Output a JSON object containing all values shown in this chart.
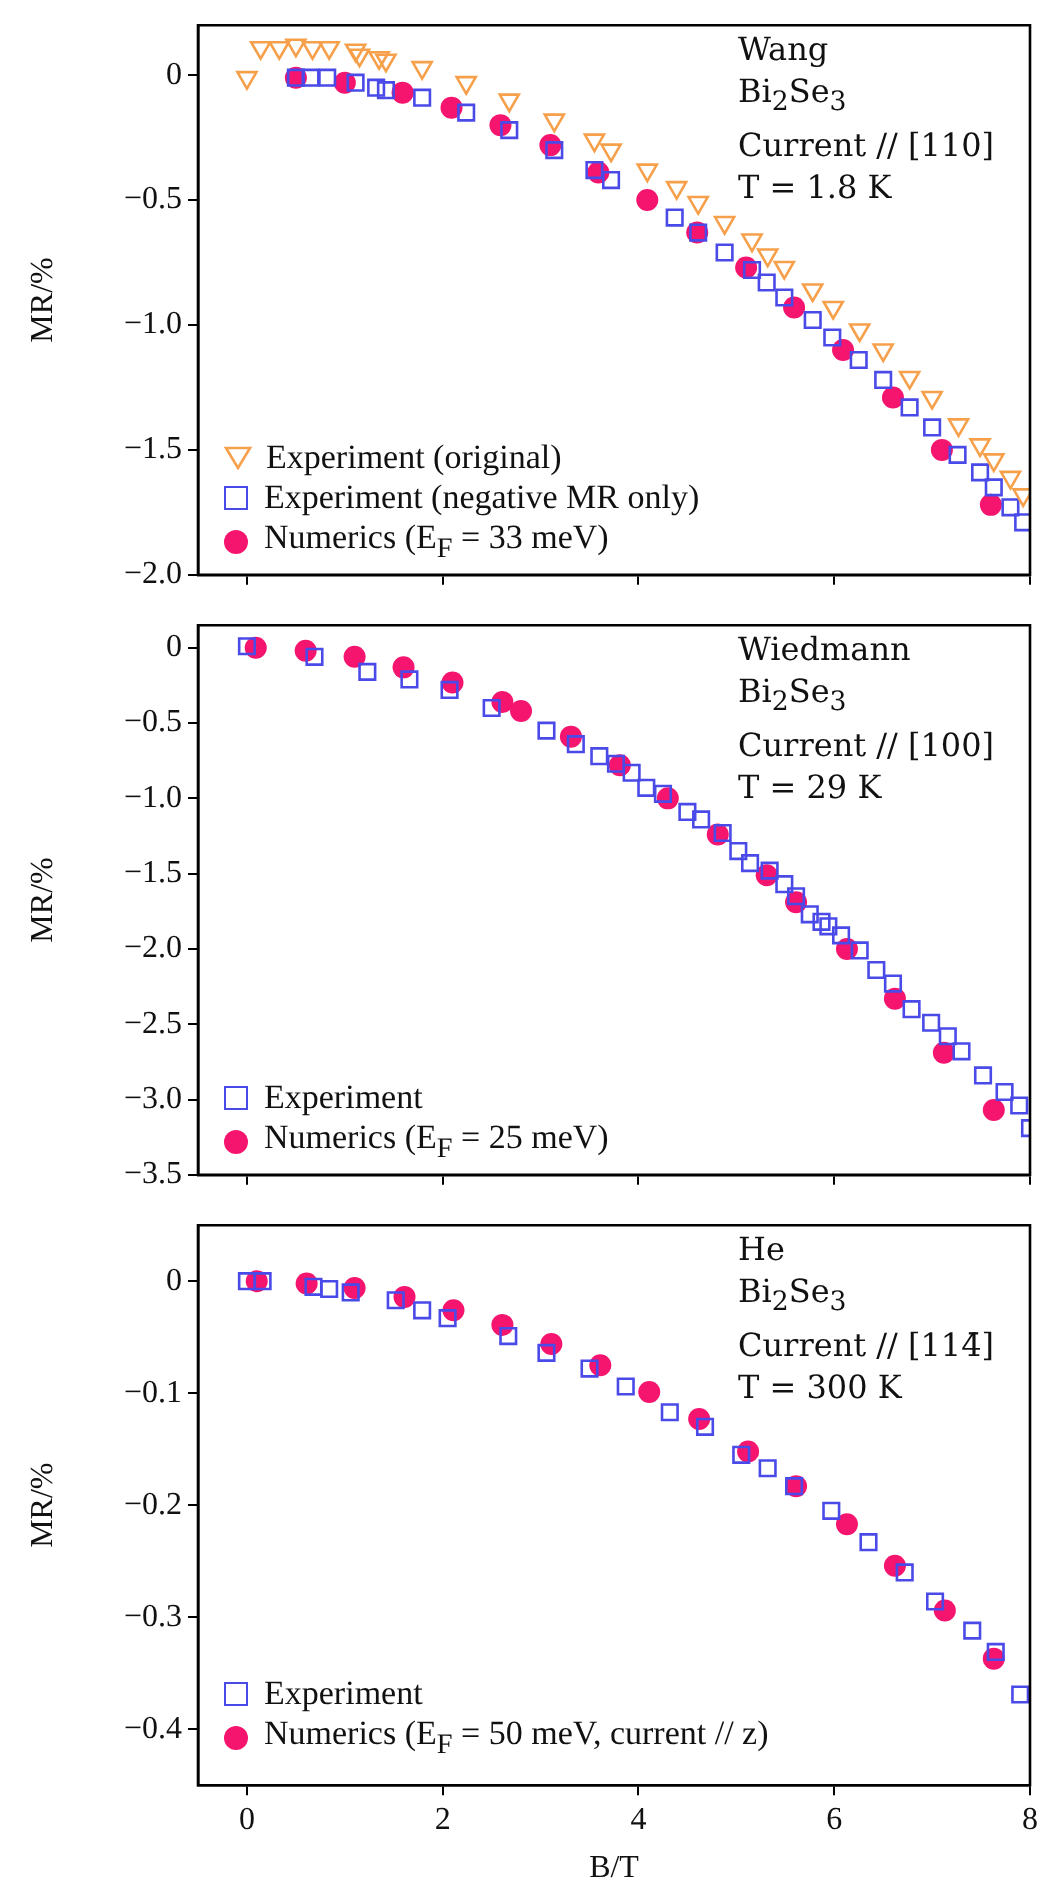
{
  "chart_data": [
    {
      "type": "scatter",
      "ylabel": "MR/%",
      "xlim": [
        -0.5,
        8
      ],
      "xticks": [
        0,
        2,
        4,
        6,
        8
      ],
      "ylim": [
        -2.0,
        0.2
      ],
      "yticks": [
        {
          "value": 0,
          "label": "0"
        },
        {
          "value": -0.5,
          "label": "−0.5"
        },
        {
          "value": -1,
          "label": "−1.0"
        },
        {
          "value": -1.5,
          "label": "−1.5"
        },
        {
          "value": -2,
          "label": "−2.0"
        }
      ],
      "tick_labels": "y",
      "legend": "bottom left",
      "annotations": [
        "Wang",
        "Bi$_{2}$Se$_{3}$",
        "Current // [110]",
        "T = 1.8 K"
      ],
      "series": [
        {
          "name": "Experiment (original)",
          "color": "#f7a04b",
          "marker": "triangle",
          "x": [
            0,
            0.14,
            0.33,
            0.5,
            0.67,
            0.84,
            1.11,
            1.15,
            1.35,
            1.42,
            1.79,
            2.24,
            2.68,
            3.14,
            3.55,
            3.72,
            4.09,
            4.39,
            4.61,
            4.88,
            5.16,
            5.32,
            5.49,
            5.78,
            5.99,
            6.26,
            6.5,
            6.77,
            7.0,
            7.27,
            7.49,
            7.63,
            7.8,
            7.93
          ],
          "values": [
            -0.01,
            0.11,
            0.11,
            0.12,
            0.11,
            0.11,
            0.1,
            0.08,
            0.07,
            0.06,
            0.03,
            -0.03,
            -0.1,
            -0.18,
            -0.26,
            -0.3,
            -0.38,
            -0.45,
            -0.51,
            -0.59,
            -0.66,
            -0.72,
            -0.77,
            -0.86,
            -0.93,
            -1.02,
            -1.1,
            -1.21,
            -1.29,
            -1.4,
            -1.48,
            -1.54,
            -1.61,
            -1.68
          ]
        },
        {
          "name": "Experiment (negative MR only)",
          "color": "#4a4ae8",
          "marker": "square",
          "x": [
            0.5,
            0.65,
            0.82,
            1.11,
            1.32,
            1.42,
            1.79,
            2.24,
            2.68,
            3.14,
            3.55,
            3.72,
            4.37,
            4.61,
            4.88,
            5.16,
            5.31,
            5.49,
            5.78,
            5.98,
            6.25,
            6.5,
            6.77,
            7.0,
            7.26,
            7.49,
            7.63,
            7.8,
            7.93
          ],
          "values": [
            -0.01,
            -0.01,
            -0.01,
            -0.03,
            -0.05,
            -0.06,
            -0.09,
            -0.15,
            -0.22,
            -0.3,
            -0.38,
            -0.42,
            -0.57,
            -0.63,
            -0.71,
            -0.78,
            -0.83,
            -0.89,
            -0.98,
            -1.05,
            -1.14,
            -1.22,
            -1.33,
            -1.41,
            -1.52,
            -1.59,
            -1.65,
            -1.73,
            -1.79
          ]
        },
        {
          "name": "Numerics (E$_{F}$ = 33 meV)",
          "color": "#f5146e",
          "marker": "circle",
          "x": [
            0.5,
            1.0,
            1.59,
            2.09,
            2.59,
            3.1,
            3.59,
            4.09,
            4.6,
            5.1,
            5.59,
            6.09,
            6.6,
            7.1,
            7.6
          ],
          "values": [
            -0.01,
            -0.03,
            -0.07,
            -0.13,
            -0.2,
            -0.28,
            -0.39,
            -0.5,
            -0.63,
            -0.77,
            -0.93,
            -1.1,
            -1.29,
            -1.5,
            -1.72
          ]
        }
      ]
    },
    {
      "type": "scatter",
      "ylabel": "MR/%",
      "xlim": [
        -0.5,
        8
      ],
      "xticks": [
        0,
        2,
        4,
        6,
        8
      ],
      "ylim": [
        -3.5,
        0.15
      ],
      "yticks": [
        {
          "value": 0,
          "label": "0"
        },
        {
          "value": -0.5,
          "label": "−0.5"
        },
        {
          "value": -1,
          "label": "−1.0"
        },
        {
          "value": -1.5,
          "label": "−1.5"
        },
        {
          "value": -2,
          "label": "−2.0"
        },
        {
          "value": -2.5,
          "label": "−2.5"
        },
        {
          "value": -3,
          "label": "−3.0"
        },
        {
          "value": -3.5,
          "label": "−3.5"
        }
      ],
      "tick_labels": "y",
      "legend": "bottom left",
      "annotations": [
        "Wiedmann",
        "Bi$_{2}$Se$_{3}$",
        "Current // [100]",
        "T = 29 K"
      ],
      "series": [
        {
          "name": "Experiment",
          "color": "#4a4ae8",
          "marker": "square",
          "x": [
            0.0,
            0.69,
            1.23,
            1.66,
            2.07,
            2.5,
            3.06,
            3.36,
            3.6,
            3.77,
            3.93,
            4.08,
            4.25,
            4.5,
            4.64,
            4.86,
            5.02,
            5.14,
            5.34,
            5.49,
            5.61,
            5.75,
            5.87,
            5.94,
            6.07,
            6.26,
            6.43,
            6.6,
            6.79,
            6.99,
            7.16,
            7.3,
            7.52,
            7.74,
            7.89,
            8.0
          ],
          "values": [
            0.01,
            -0.06,
            -0.16,
            -0.21,
            -0.28,
            -0.4,
            -0.55,
            -0.64,
            -0.72,
            -0.77,
            -0.83,
            -0.93,
            -0.97,
            -1.09,
            -1.14,
            -1.23,
            -1.35,
            -1.43,
            -1.48,
            -1.57,
            -1.65,
            -1.77,
            -1.82,
            -1.85,
            -1.91,
            -2.01,
            -2.14,
            -2.23,
            -2.4,
            -2.49,
            -2.58,
            -2.68,
            -2.84,
            -2.95,
            -3.04,
            -3.19
          ]
        },
        {
          "name": "Numerics (E$_{F}$ = 25 meV)",
          "color": "#f5146e",
          "marker": "circle",
          "x": [
            0.09,
            0.6,
            1.1,
            1.6,
            2.1,
            2.61,
            2.8,
            3.31,
            3.81,
            4.3,
            4.81,
            5.31,
            5.61,
            6.13,
            6.62,
            7.12,
            7.63
          ],
          "values": [
            0.0,
            -0.02,
            -0.06,
            -0.13,
            -0.23,
            -0.36,
            -0.42,
            -0.59,
            -0.78,
            -1.0,
            -1.24,
            -1.51,
            -1.69,
            -2.0,
            -2.33,
            -2.69,
            -3.07
          ]
        }
      ]
    },
    {
      "type": "scatter",
      "ylabel": "MR/%",
      "xlabel": "B/T",
      "xlim": [
        -0.5,
        8
      ],
      "xticks": [
        0,
        2,
        4,
        6,
        8
      ],
      "ylim": [
        -0.45,
        0.05
      ],
      "yticks": [
        {
          "value": 0,
          "label": "0"
        },
        {
          "value": -0.1,
          "label": "−0.1"
        },
        {
          "value": -0.2,
          "label": "−0.2"
        },
        {
          "value": -0.3,
          "label": "−0.3"
        },
        {
          "value": -0.4,
          "label": "−0.4"
        }
      ],
      "legend": "bottom left",
      "annotations": [
        "He",
        "Bi$_{2}$Se$_{3}$",
        "Current // [114̄]",
        "T = 300 K"
      ],
      "series": [
        {
          "name": "Experiment",
          "color": "#4a4ae8",
          "marker": "square",
          "x": [
            0.0,
            0.16,
            0.68,
            0.84,
            1.06,
            1.52,
            1.79,
            2.05,
            2.67,
            3.06,
            3.5,
            3.87,
            4.32,
            4.68,
            5.05,
            5.32,
            5.59,
            5.97,
            6.35,
            6.72,
            7.03,
            7.41,
            7.65,
            7.9
          ],
          "values": [
            0.0,
            0.0,
            -0.005,
            -0.007,
            -0.01,
            -0.017,
            -0.026,
            -0.033,
            -0.049,
            -0.064,
            -0.078,
            -0.094,
            -0.117,
            -0.13,
            -0.155,
            -0.167,
            -0.183,
            -0.205,
            -0.233,
            -0.26,
            -0.286,
            -0.312,
            -0.331,
            -0.369
          ]
        },
        {
          "name": "Numerics (E$_{F}$ = 50 meV, current // z)",
          "color": "#f5146e",
          "marker": "circle",
          "x": [
            0.1,
            0.61,
            1.1,
            1.61,
            2.11,
            2.61,
            3.11,
            3.61,
            4.11,
            4.62,
            5.12,
            5.61,
            6.13,
            6.62,
            7.13,
            7.63
          ],
          "values": [
            0.0,
            -0.002,
            -0.006,
            -0.014,
            -0.026,
            -0.039,
            -0.056,
            -0.075,
            -0.099,
            -0.123,
            -0.152,
            -0.183,
            -0.217,
            -0.254,
            -0.294,
            -0.337
          ]
        }
      ]
    }
  ]
}
